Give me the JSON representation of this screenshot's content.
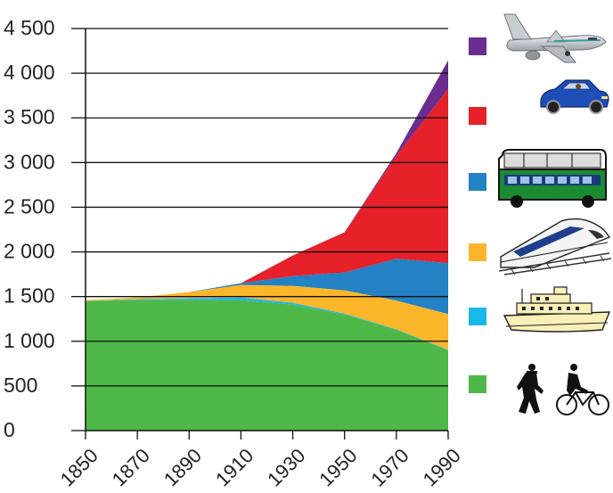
{
  "chart_data": {
    "type": "area",
    "stacked": true,
    "x": [
      1850,
      1870,
      1890,
      1910,
      1930,
      1950,
      1970,
      1990
    ],
    "x_tick_labels": [
      "1850",
      "1870",
      "1890",
      "1910",
      "1930",
      "1950",
      "1970",
      "1990"
    ],
    "ylim": [
      0,
      4500
    ],
    "y_ticks": [
      0,
      500,
      1000,
      1500,
      2000,
      2500,
      3000,
      3500,
      4000,
      4500
    ],
    "y_tick_labels": [
      "0",
      "500",
      "1 000",
      "1 500",
      "2 000",
      "2 500",
      "3 000",
      "3 500",
      "4 000",
      "4 500"
    ],
    "grid": true,
    "legend_placement": "right",
    "series": [
      {
        "icon": "walking-and-cycling-icon",
        "color": "#4db848",
        "values": [
          1450,
          1460,
          1460,
          1460,
          1410,
          1300,
          1130,
          900
        ]
      },
      {
        "icon": "ferry-icon",
        "color": "#1ab8e8",
        "values": [
          0,
          10,
          20,
          30,
          20,
          10,
          5,
          5
        ]
      },
      {
        "icon": "train-icon",
        "color": "#fbb62a",
        "values": [
          10,
          20,
          70,
          140,
          190,
          260,
          320,
          400
        ]
      },
      {
        "icon": "bus-icon",
        "color": "#2481c3",
        "values": [
          0,
          0,
          0,
          20,
          110,
          200,
          470,
          570
        ]
      },
      {
        "icon": "car-icon",
        "color": "#e62129",
        "values": [
          0,
          0,
          0,
          0,
          230,
          450,
          1150,
          1950
        ]
      },
      {
        "icon": "airplane-icon",
        "color": "#6a2d8f",
        "values": [
          0,
          0,
          0,
          0,
          0,
          0,
          30,
          320
        ]
      }
    ]
  }
}
